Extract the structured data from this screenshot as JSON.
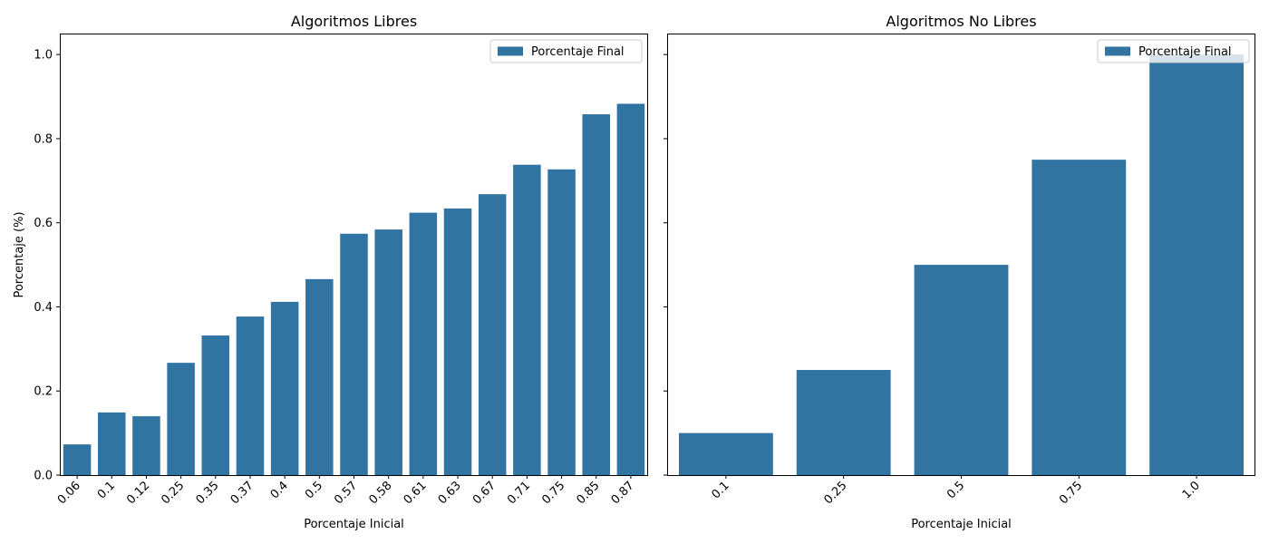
{
  "chart_data": [
    {
      "type": "bar",
      "title": "Algoritmos Libres",
      "xlabel": "Porcentaje Inicial",
      "ylabel": "Porcentaje (%)",
      "ylim": [
        0,
        1.05
      ],
      "yticks": [
        "0.0",
        "0.2",
        "0.4",
        "0.6",
        "0.8",
        "1.0"
      ],
      "legend": {
        "label": "Porcentaje Final",
        "position": "upper right"
      },
      "color": "#3274a1",
      "categories": [
        "0.06",
        "0.1",
        "0.12",
        "0.25",
        "0.35",
        "0.37",
        "0.4",
        "0.5",
        "0.57",
        "0.58",
        "0.61",
        "0.63",
        "0.67",
        "0.71",
        "0.75",
        "0.85",
        "0.87"
      ],
      "values": [
        0.073,
        0.149,
        0.14,
        0.267,
        0.332,
        0.377,
        0.412,
        0.466,
        0.574,
        0.584,
        0.624,
        0.634,
        0.668,
        0.738,
        0.727,
        0.858,
        0.883
      ]
    },
    {
      "type": "bar",
      "title": "Algoritmos No Libres",
      "xlabel": "Porcentaje Inicial",
      "ylabel": "",
      "ylim": [
        0,
        1.05
      ],
      "yticks": [
        "0.0",
        "0.2",
        "0.4",
        "0.6",
        "0.8",
        "1.0"
      ],
      "legend": {
        "label": "Porcentaje Final",
        "position": "upper right"
      },
      "color": "#3274a1",
      "categories": [
        "0.1",
        "0.25",
        "0.5",
        "0.75",
        "1.0"
      ],
      "values": [
        0.1,
        0.25,
        0.5,
        0.75,
        1.0
      ]
    }
  ]
}
